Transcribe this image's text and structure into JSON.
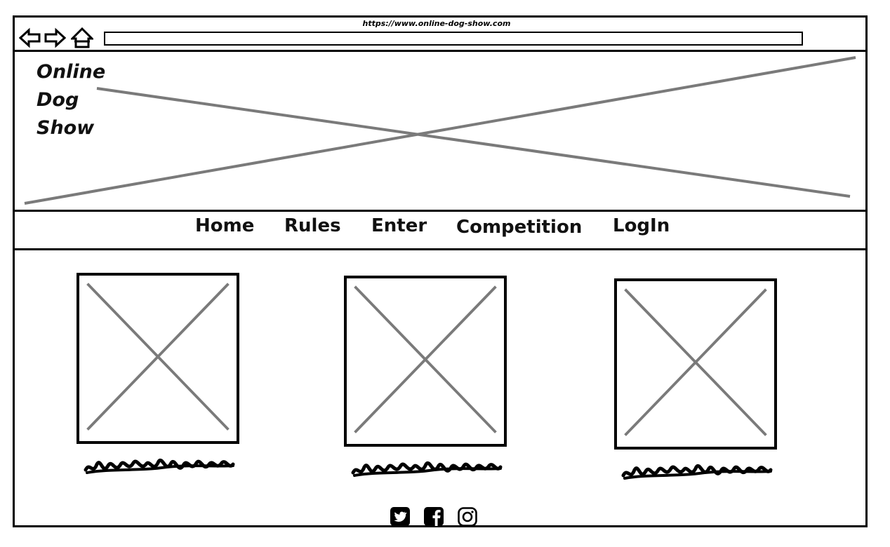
{
  "browser": {
    "url": "https://www.online-dog-show.com",
    "back_icon": "arrow-left-icon",
    "forward_icon": "arrow-right-icon",
    "home_icon": "home-icon"
  },
  "header": {
    "logo_lines": [
      "Online",
      "Dog",
      "Show"
    ],
    "banner": "image-placeholder"
  },
  "nav": {
    "items": [
      {
        "label": "Home"
      },
      {
        "label": "Rules"
      },
      {
        "label": "Enter"
      },
      {
        "label": "Competition"
      },
      {
        "label": "LogIn"
      }
    ]
  },
  "cards": [
    {
      "image": "image-placeholder",
      "caption": "scribble-placeholder"
    },
    {
      "image": "image-placeholder",
      "caption": "scribble-placeholder"
    },
    {
      "image": "image-placeholder",
      "caption": "scribble-placeholder"
    }
  ],
  "footer": {
    "social": [
      "twitter-icon",
      "facebook-icon",
      "instagram-icon"
    ]
  },
  "colors": {
    "line": "#000000",
    "placeholder_cross": "#7a7a7a"
  }
}
